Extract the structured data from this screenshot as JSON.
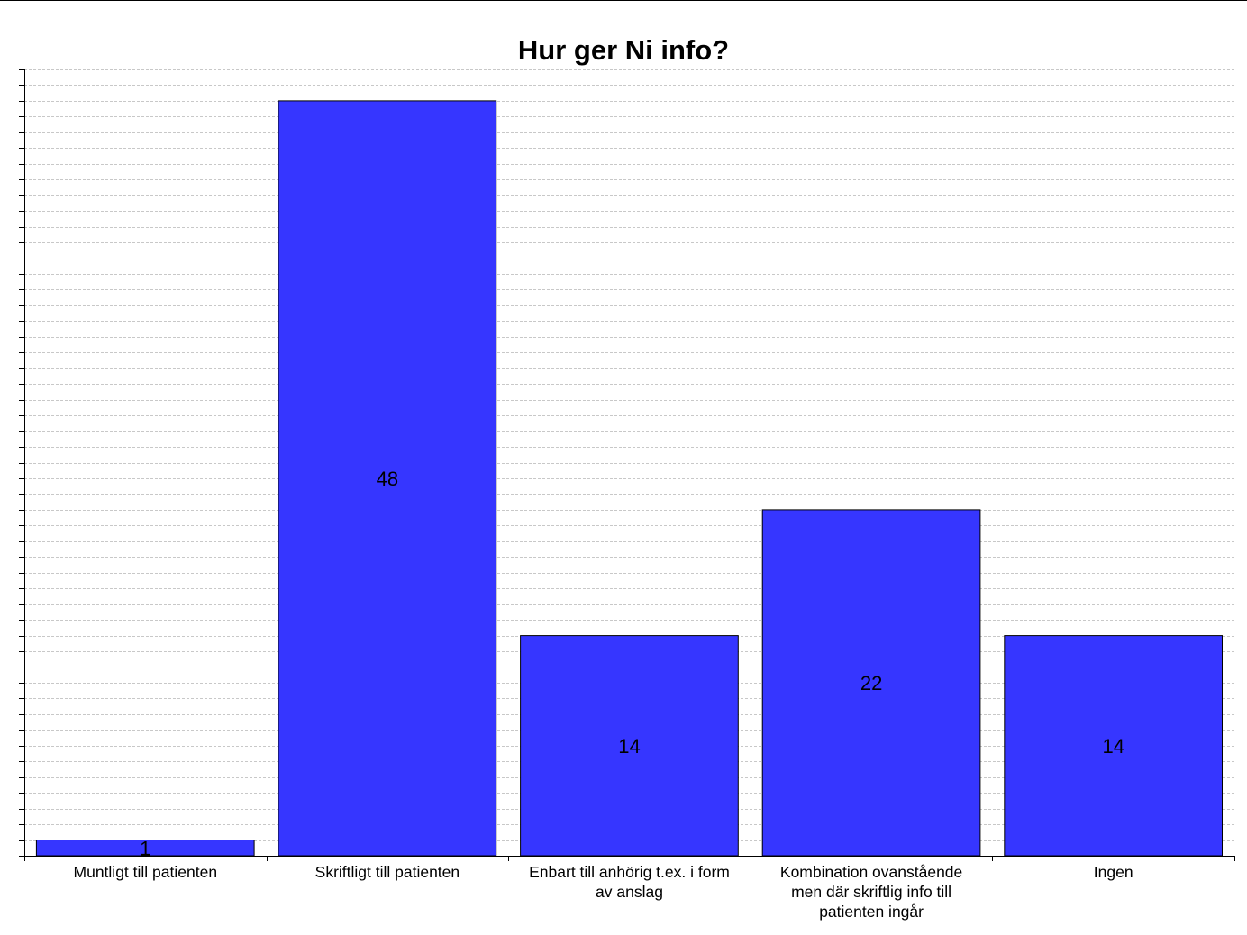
{
  "chart_data": {
    "type": "bar",
    "title": "Hur ger Ni info?",
    "categories": [
      "Muntligt till patienten",
      "Skriftligt till patienten",
      "Enbart till anhörig t.ex. i form av anslag",
      "Kombination ovanstående men där skriftlig info till patienten ingår",
      "Ingen"
    ],
    "category_lines": [
      [
        "Muntligt till patienten"
      ],
      [
        "Skriftligt till patienten"
      ],
      [
        "Enbart till anhörig t.ex. i form",
        "av anslag"
      ],
      [
        "Kombination ovanstående",
        "men där skriftlig info till",
        "patienten ingår"
      ],
      [
        "Ingen"
      ]
    ],
    "values": [
      1,
      48,
      14,
      22,
      14
    ],
    "value_labels": [
      "1",
      "48",
      "14",
      "22",
      "14"
    ],
    "ylim": [
      0,
      50
    ],
    "grid": true,
    "legend": "none"
  },
  "colors": {
    "bar_fill": "#3636ff",
    "bar_stroke": "#000000",
    "grid_line": "#c8c8c8",
    "axis": "#000000"
  }
}
